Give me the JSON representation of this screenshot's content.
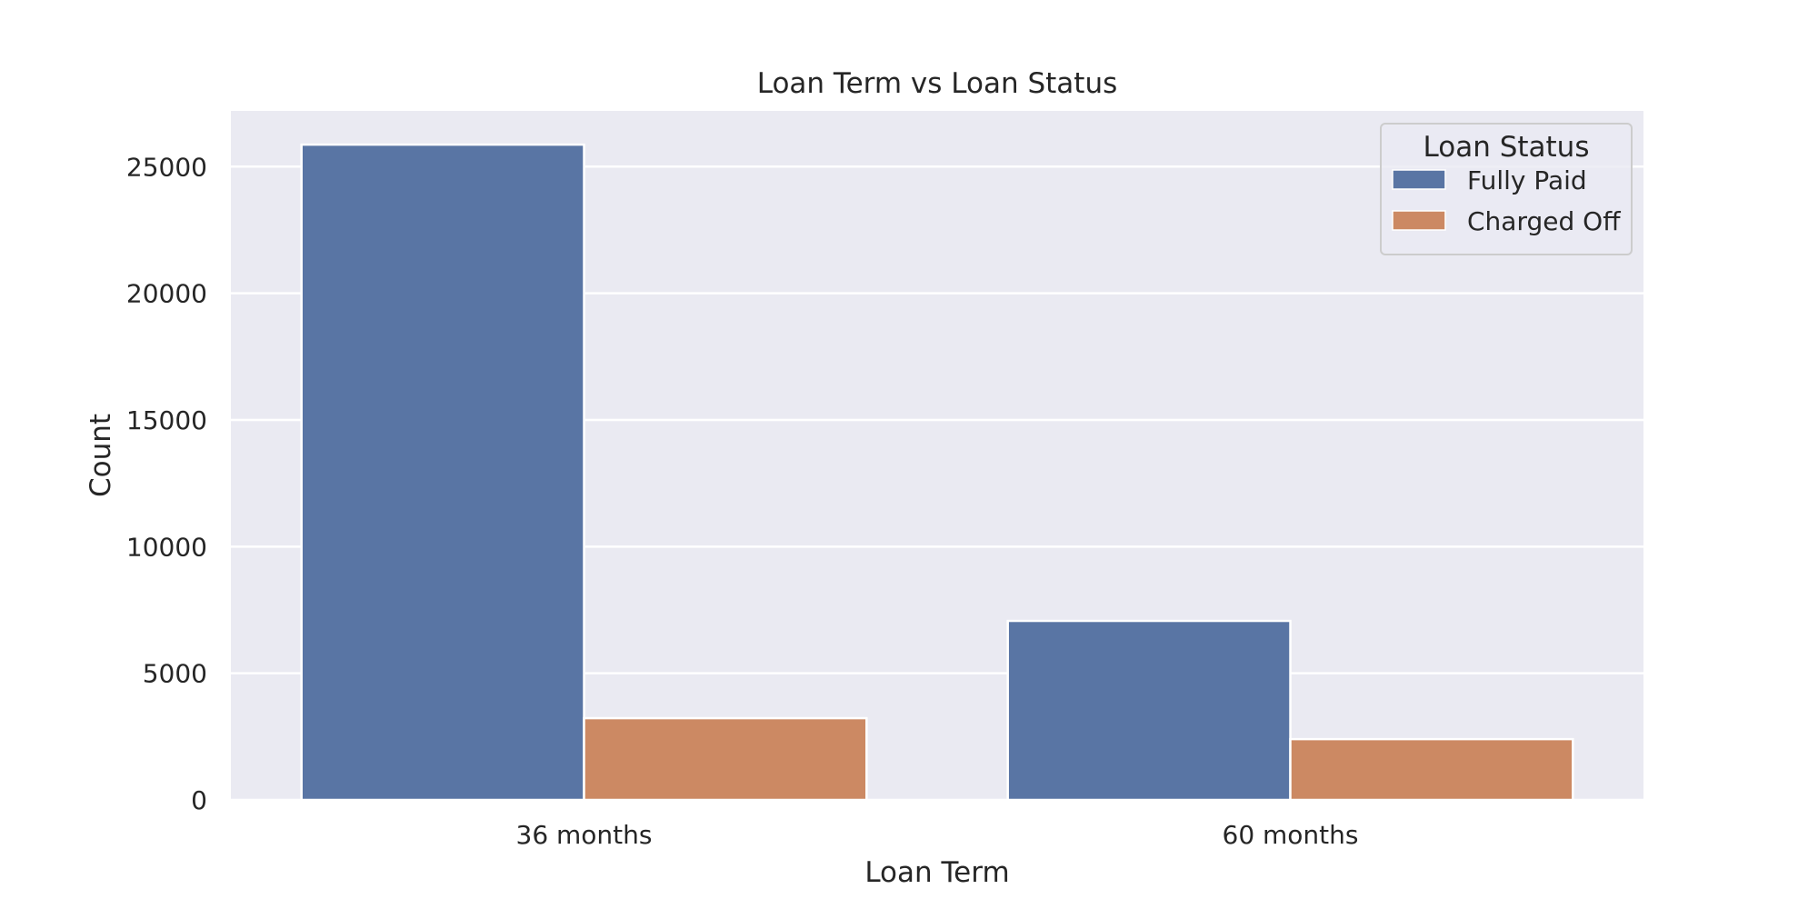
{
  "chart_data": {
    "type": "bar",
    "title": "Loan Term vs Loan Status",
    "xlabel": "Loan Term",
    "ylabel": "Count",
    "categories": [
      "36 months",
      "60 months"
    ],
    "series": [
      {
        "name": "Fully Paid",
        "values": [
          25869,
          7068
        ],
        "color": "#5975a4"
      },
      {
        "name": "Charged Off",
        "values": [
          3227,
          2400
        ],
        "color": "#cc8963"
      }
    ],
    "ylim": [
      0,
      27200
    ],
    "yticks": [
      0,
      5000,
      10000,
      15000,
      20000,
      25000
    ],
    "ytick_labels": [
      "0",
      "5000",
      "10000",
      "15000",
      "20000",
      "25000"
    ],
    "grid": true,
    "background_color": "#eaeaf2",
    "legend": {
      "title": "Loan Status",
      "position": "top-right"
    }
  }
}
